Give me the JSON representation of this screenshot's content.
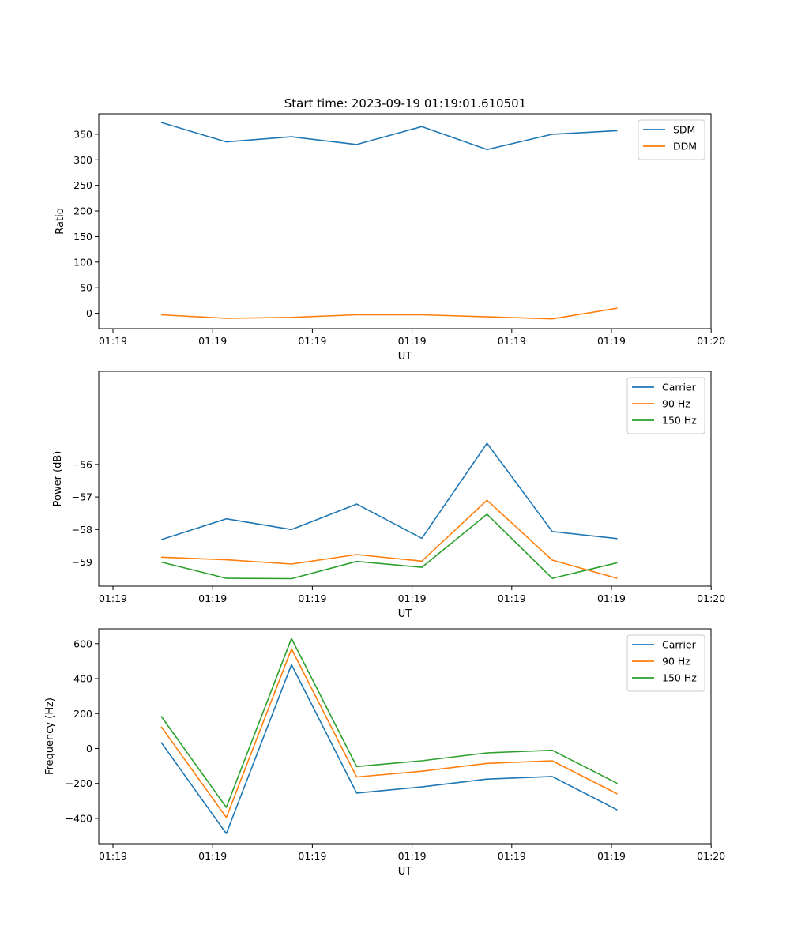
{
  "figure_title": "Start time: 2023-09-19 01:19:01.610501",
  "chart_data": [
    {
      "type": "line",
      "xlabel": "UT",
      "ylabel": "Ratio",
      "xtick_labels": [
        "01:19",
        "01:19",
        "01:19",
        "01:19",
        "01:19",
        "01:19",
        "01:20"
      ],
      "ylim": [
        -30,
        390
      ],
      "yticks": [
        0,
        50,
        100,
        150,
        200,
        250,
        300,
        350
      ],
      "ytick_labels": [
        "0",
        "50",
        "100",
        "150",
        "200",
        "250",
        "300",
        "350"
      ],
      "legend": "top-right",
      "series": [
        {
          "name": "SDM",
          "color": "#1f77b4",
          "values": [
            373,
            335,
            345,
            330,
            365,
            320,
            350,
            357
          ]
        },
        {
          "name": "DDM",
          "color": "#ff7f0e",
          "values": [
            -3,
            -10,
            -8,
            -3,
            -3,
            -7,
            -11,
            10
          ]
        }
      ]
    },
    {
      "type": "line",
      "xlabel": "UT",
      "ylabel": "Power (dB)",
      "xtick_labels": [
        "01:19",
        "01:19",
        "01:19",
        "01:19",
        "01:19",
        "01:19",
        "01:20"
      ],
      "ylim": [
        -59.74,
        -53.14
      ],
      "yticks": [
        -59,
        -58,
        -57,
        -56
      ],
      "ytick_labels": [
        "−59",
        "−58",
        "−57",
        "−56"
      ],
      "legend": "top-right",
      "series": [
        {
          "name": "Carrier",
          "color": "#1f77b4",
          "values": [
            -58.31,
            -57.67,
            -58.0,
            -57.22,
            -58.27,
            -55.35,
            -58.06,
            -58.28
          ]
        },
        {
          "name": "90 Hz",
          "color": "#ff7f0e",
          "values": [
            -58.85,
            -58.93,
            -59.06,
            -58.77,
            -58.97,
            -57.1,
            -58.94,
            -59.5
          ]
        },
        {
          "name": "150 Hz",
          "color": "#2ca02c",
          "values": [
            -59.0,
            -59.5,
            -59.51,
            -58.98,
            -59.16,
            -57.53,
            -59.5,
            -59.02
          ]
        }
      ]
    },
    {
      "type": "line",
      "xlabel": "UT",
      "ylabel": "Frequency (Hz)",
      "xtick_labels": [
        "01:19",
        "01:19",
        "01:19",
        "01:19",
        "01:19",
        "01:19",
        "01:20"
      ],
      "ylim": [
        -545,
        685
      ],
      "yticks": [
        -400,
        -200,
        0,
        200,
        400,
        600
      ],
      "ytick_labels": [
        "−400",
        "−200",
        "0",
        "200",
        "400",
        "600"
      ],
      "legend": "top-right",
      "series": [
        {
          "name": "Carrier",
          "color": "#1f77b4",
          "values": [
            35,
            -487,
            480,
            -255,
            -220,
            -175,
            -160,
            -352
          ]
        },
        {
          "name": "90 Hz",
          "color": "#ff7f0e",
          "values": [
            125,
            -395,
            570,
            -163,
            -130,
            -85,
            -70,
            -260
          ]
        },
        {
          "name": "150 Hz",
          "color": "#2ca02c",
          "values": [
            185,
            -337,
            630,
            -103,
            -70,
            -25,
            -10,
            -200
          ]
        }
      ]
    }
  ]
}
